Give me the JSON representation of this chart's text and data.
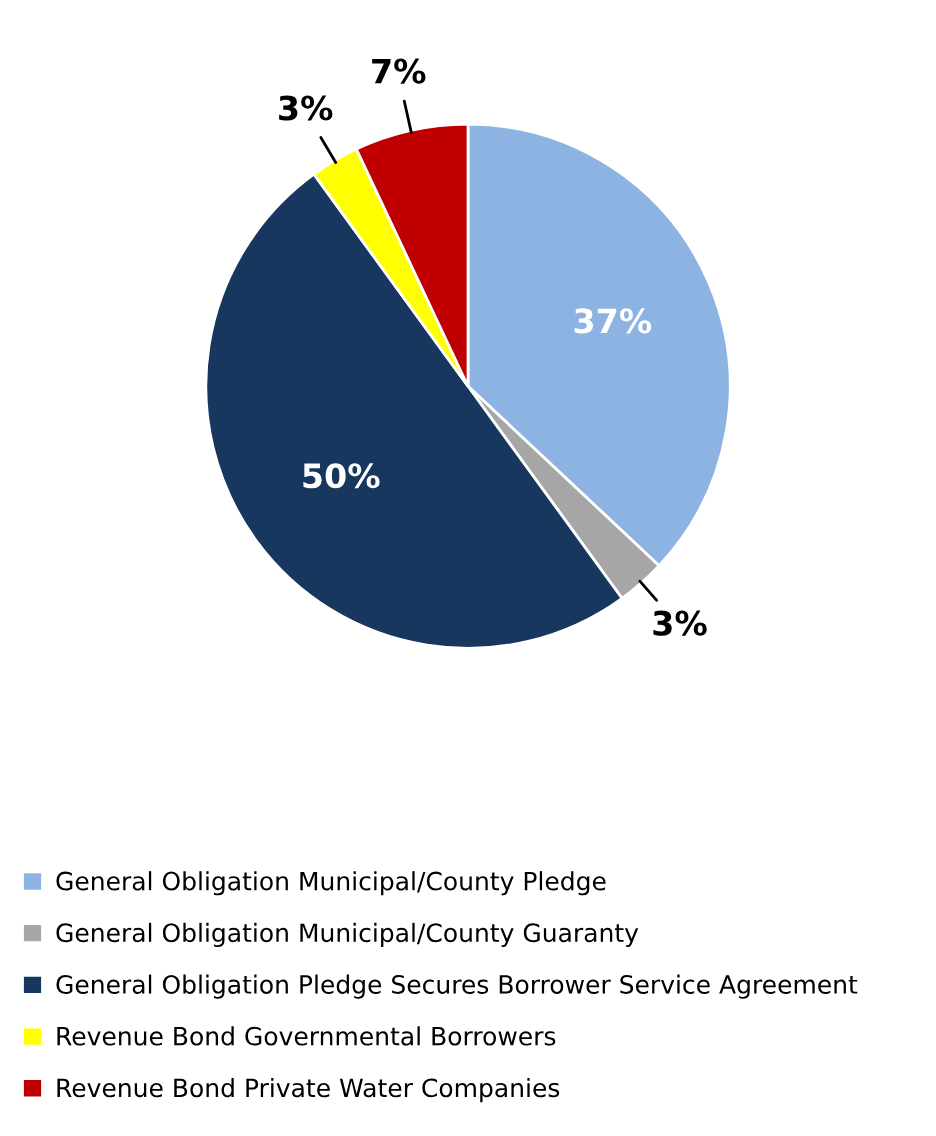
{
  "chart_data": {
    "type": "pie",
    "categories": [
      "General Obligation Municipal/County Pledge",
      "General Obligation Municipal/County Guaranty",
      "General Obligation Pledge Secures Borrower Service Agreement",
      "Revenue Bond Governmental Borrowers",
      "Revenue Bond Private Water Companies"
    ],
    "values": [
      37,
      3,
      50,
      3,
      7
    ],
    "colors": [
      "#8db3e2",
      "#a6a6a6",
      "#17375e",
      "#ffff00",
      "#c00000"
    ],
    "value_labels": [
      "37%",
      "3%",
      "50%",
      "3%",
      "7%"
    ],
    "legend": "bottom"
  }
}
